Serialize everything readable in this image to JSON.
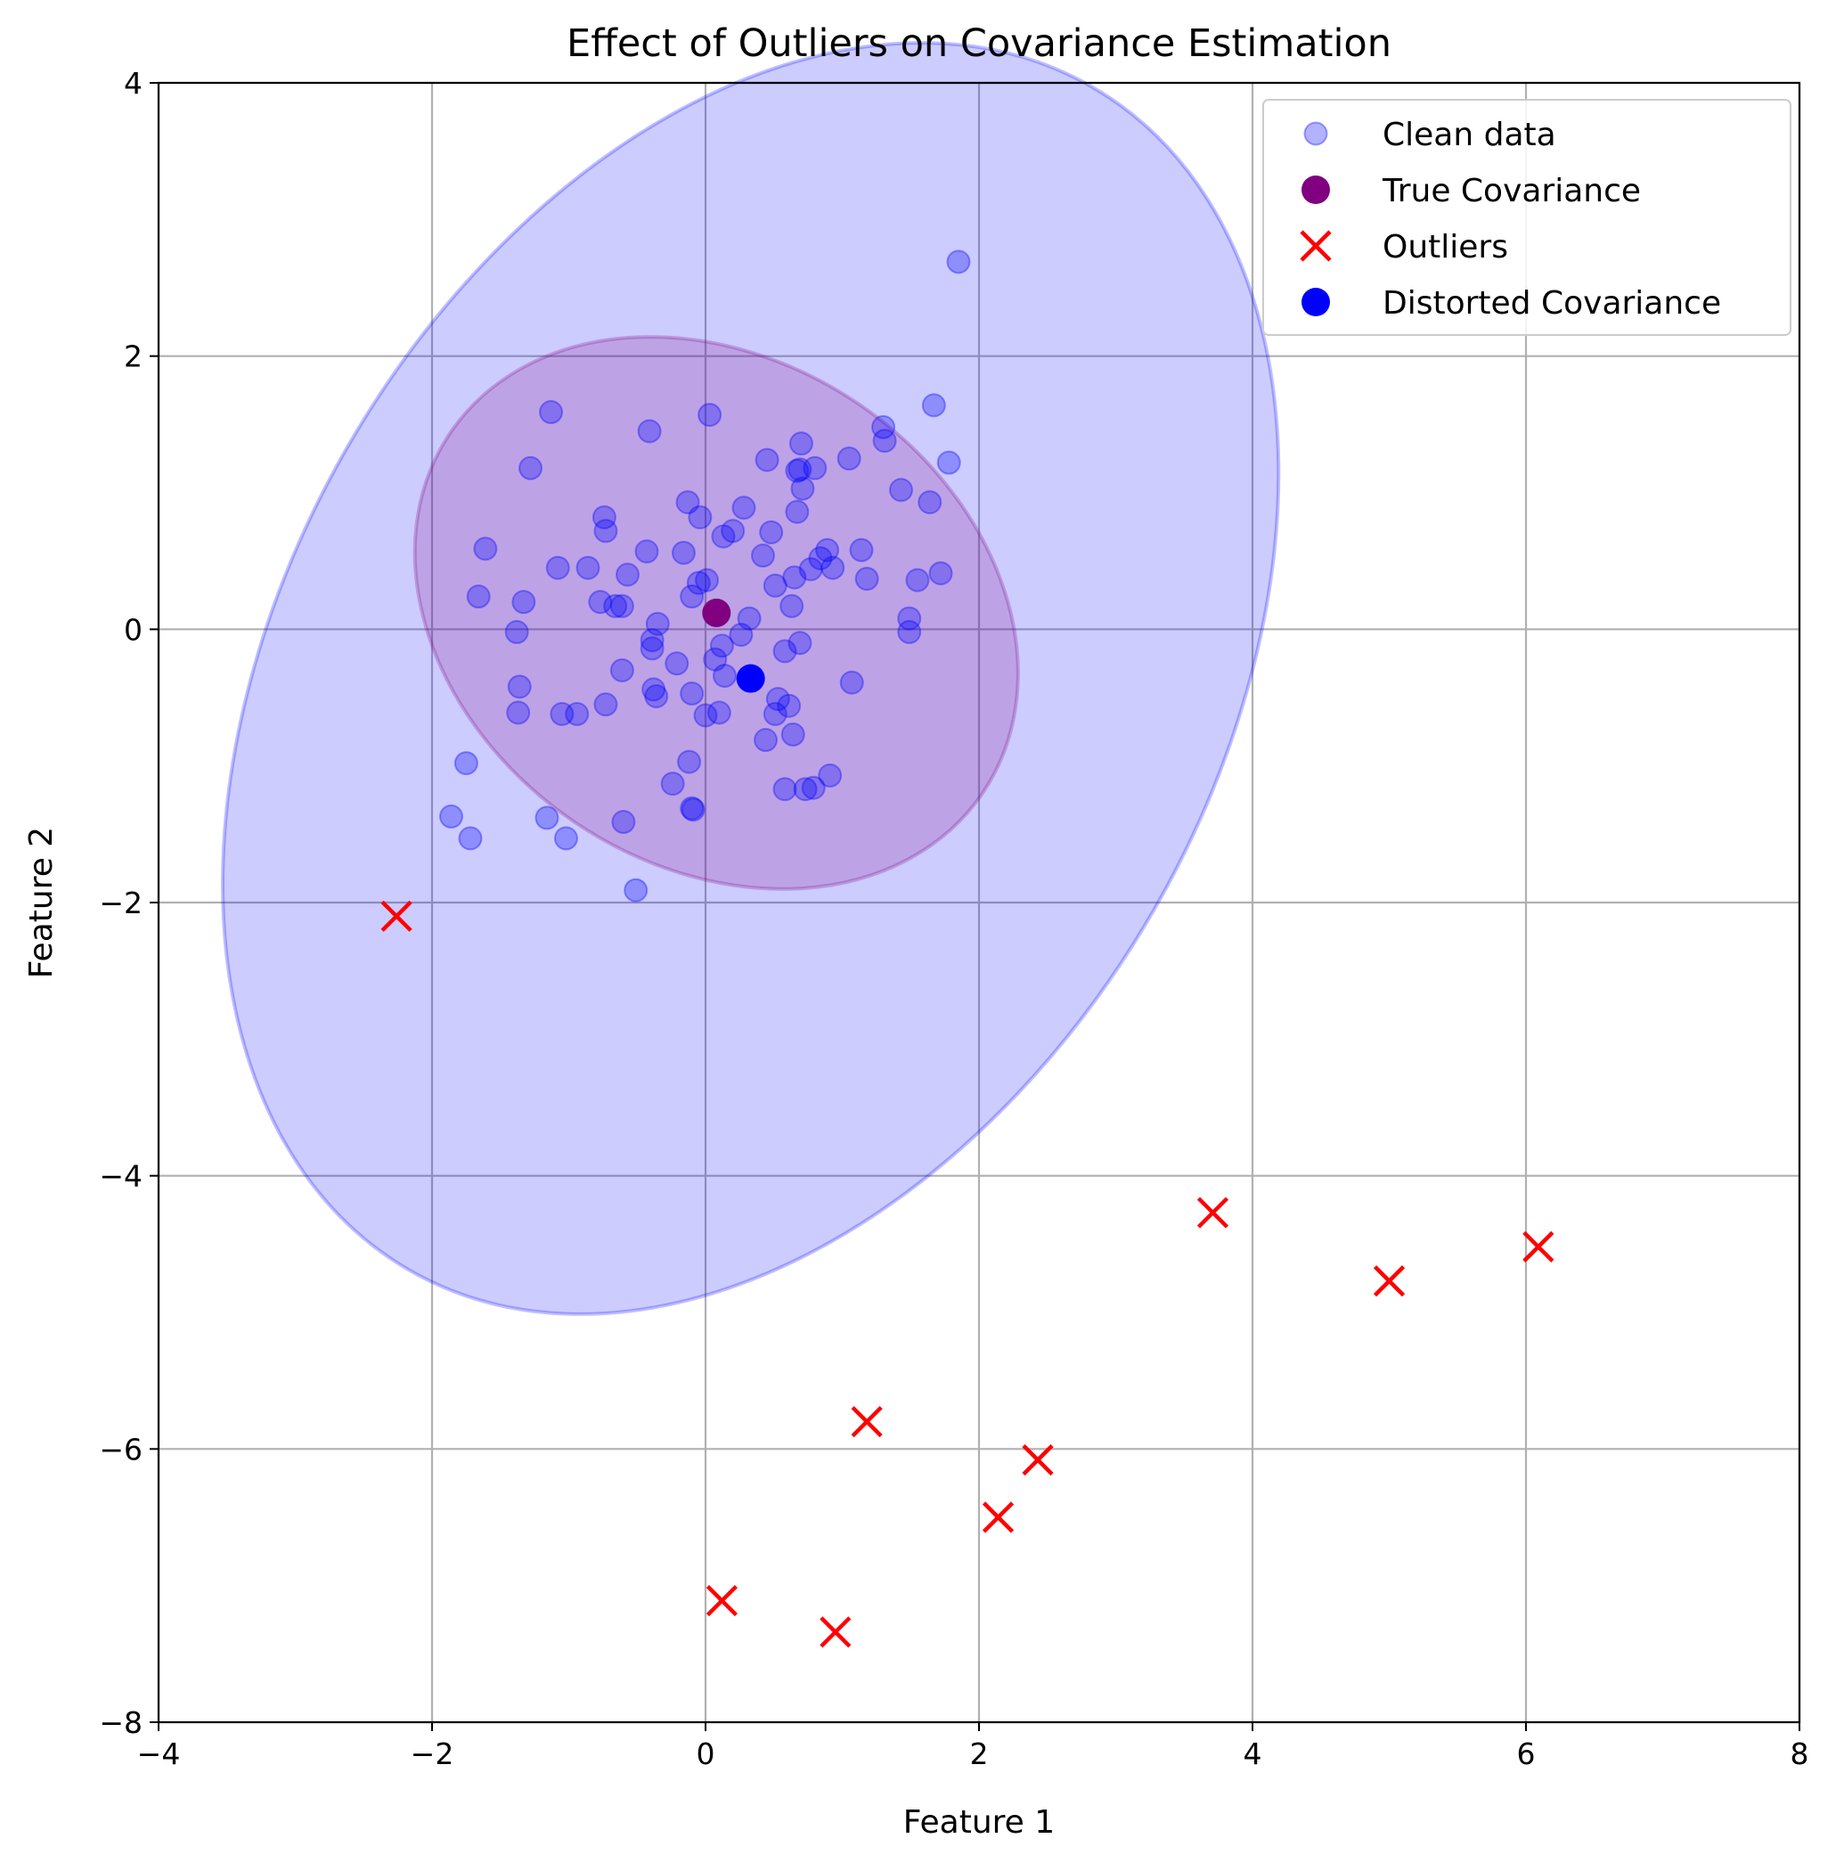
{
  "chart_data": {
    "type": "scatter",
    "title": "Effect of Outliers on Covariance Estimation",
    "xlabel": "Feature 1",
    "ylabel": "Feature 2",
    "xlim": [
      -4,
      8
    ],
    "ylim": [
      -8,
      4
    ],
    "xticks": [
      -4,
      -2,
      0,
      2,
      4,
      6,
      8
    ],
    "yticks": [
      -8,
      -6,
      -4,
      -2,
      0,
      2,
      4
    ],
    "xtick_labels": [
      "−4",
      "−2",
      "0",
      "2",
      "4",
      "6",
      "8"
    ],
    "ytick_labels": [
      "−8",
      "−6",
      "−4",
      "−2",
      "0",
      "2",
      "4"
    ],
    "grid": true,
    "legend_position": "top-right",
    "colors": {
      "clean": "#0000ff",
      "true_cov": "#800080",
      "outliers": "#ff0000",
      "distorted_cov": "#0000ff",
      "grid": "#b0b0b0"
    },
    "legend": [
      {
        "label": "Clean data",
        "marker": "circle-alpha",
        "color": "#0000ff"
      },
      {
        "label": "True Covariance",
        "marker": "circle",
        "color": "#800080"
      },
      {
        "label": "Outliers",
        "marker": "x",
        "color": "#ff0000"
      },
      {
        "label": "Distorted Covariance",
        "marker": "circle",
        "color": "#0000ff"
      }
    ],
    "ellipses": [
      {
        "name": "Distorted Covariance",
        "center": [
          0.33,
          -0.36
        ],
        "rx": 3.4,
        "ry": 5.0,
        "angle_deg": 30,
        "fill": "#0000ff",
        "fill_opacity": 0.2,
        "stroke": "#0000ff",
        "stroke_opacity": 0.25
      },
      {
        "name": "True Covariance",
        "center": [
          0.08,
          0.12
        ],
        "rx": 2.35,
        "ry": 1.85,
        "angle_deg": 34,
        "fill": "#800080",
        "fill_opacity": 0.2,
        "stroke": "#800080",
        "stroke_opacity": 0.25
      }
    ],
    "series": [
      {
        "name": "Clean data",
        "points": [
          [
            1.85,
            2.69
          ],
          [
            -1.13,
            1.59
          ],
          [
            0.03,
            1.57
          ],
          [
            1.67,
            1.64
          ],
          [
            1.3,
            1.48
          ],
          [
            -0.41,
            1.45
          ],
          [
            1.31,
            1.38
          ],
          [
            0.7,
            1.36
          ],
          [
            0.45,
            1.24
          ],
          [
            1.05,
            1.25
          ],
          [
            1.78,
            1.22
          ],
          [
            -1.28,
            1.18
          ],
          [
            0.8,
            1.18
          ],
          [
            0.69,
            1.17
          ],
          [
            0.67,
            1.16
          ],
          [
            1.43,
            1.02
          ],
          [
            0.71,
            1.03
          ],
          [
            -0.13,
            0.93
          ],
          [
            1.64,
            0.93
          ],
          [
            0.28,
            0.89
          ],
          [
            0.67,
            0.86
          ],
          [
            -0.74,
            0.82
          ],
          [
            -0.04,
            0.82
          ],
          [
            -0.73,
            0.72
          ],
          [
            0.2,
            0.72
          ],
          [
            0.48,
            0.71
          ],
          [
            0.13,
            0.68
          ],
          [
            -1.61,
            0.59
          ],
          [
            0.89,
            0.58
          ],
          [
            1.14,
            0.58
          ],
          [
            -0.43,
            0.57
          ],
          [
            -0.16,
            0.56
          ],
          [
            0.42,
            0.54
          ],
          [
            0.84,
            0.52
          ],
          [
            -1.08,
            0.45
          ],
          [
            -0.86,
            0.45
          ],
          [
            0.93,
            0.45
          ],
          [
            0.77,
            0.44
          ],
          [
            1.72,
            0.41
          ],
          [
            -0.57,
            0.4
          ],
          [
            0.65,
            0.38
          ],
          [
            1.18,
            0.37
          ],
          [
            0.01,
            0.36
          ],
          [
            1.55,
            0.36
          ],
          [
            -0.05,
            0.34
          ],
          [
            0.51,
            0.32
          ],
          [
            -1.66,
            0.24
          ],
          [
            -0.1,
            0.24
          ],
          [
            -1.33,
            0.2
          ],
          [
            -0.77,
            0.2
          ],
          [
            -0.66,
            0.17
          ],
          [
            -0.61,
            0.17
          ],
          [
            0.63,
            0.17
          ],
          [
            0.32,
            0.08
          ],
          [
            1.49,
            0.08
          ],
          [
            -0.35,
            0.04
          ],
          [
            1.49,
            -0.02
          ],
          [
            -1.38,
            -0.02
          ],
          [
            0.26,
            -0.04
          ],
          [
            -0.39,
            -0.08
          ],
          [
            0.69,
            -0.1
          ],
          [
            0.12,
            -0.12
          ],
          [
            -0.39,
            -0.14
          ],
          [
            0.58,
            -0.16
          ],
          [
            0.07,
            -0.22
          ],
          [
            -0.21,
            -0.25
          ],
          [
            -0.61,
            -0.3
          ],
          [
            0.14,
            -0.34
          ],
          [
            1.07,
            -0.39
          ],
          [
            -1.36,
            -0.42
          ],
          [
            -0.38,
            -0.44
          ],
          [
            -0.1,
            -0.47
          ],
          [
            -0.36,
            -0.49
          ],
          [
            0.53,
            -0.51
          ],
          [
            -0.73,
            -0.55
          ],
          [
            0.61,
            -0.56
          ],
          [
            -1.37,
            -0.61
          ],
          [
            0.1,
            -0.61
          ],
          [
            0.51,
            -0.62
          ],
          [
            -1.05,
            -0.62
          ],
          [
            0.0,
            -0.63
          ],
          [
            -0.94,
            -0.62
          ],
          [
            0.64,
            -0.77
          ],
          [
            0.44,
            -0.81
          ],
          [
            -0.12,
            -0.97
          ],
          [
            -1.75,
            -0.98
          ],
          [
            0.91,
            -1.07
          ],
          [
            -0.24,
            -1.13
          ],
          [
            0.58,
            -1.17
          ],
          [
            0.79,
            -1.16
          ],
          [
            0.73,
            -1.17
          ],
          [
            -0.1,
            -1.31
          ],
          [
            -0.09,
            -1.32
          ],
          [
            -1.86,
            -1.37
          ],
          [
            -1.16,
            -1.38
          ],
          [
            -0.6,
            -1.41
          ],
          [
            -1.72,
            -1.53
          ],
          [
            -1.02,
            -1.53
          ],
          [
            -0.51,
            -1.91
          ]
        ]
      },
      {
        "name": "True Covariance",
        "points": [
          [
            0.08,
            0.12
          ]
        ]
      },
      {
        "name": "Outliers",
        "points": [
          [
            -2.26,
            -2.1
          ],
          [
            3.71,
            -4.27
          ],
          [
            6.09,
            -4.52
          ],
          [
            5.0,
            -4.77
          ],
          [
            1.18,
            -5.8
          ],
          [
            2.43,
            -6.08
          ],
          [
            2.14,
            -6.5
          ],
          [
            0.12,
            -7.11
          ],
          [
            0.95,
            -7.34
          ]
        ]
      },
      {
        "name": "Distorted Covariance",
        "points": [
          [
            0.33,
            -0.36
          ]
        ]
      }
    ]
  }
}
